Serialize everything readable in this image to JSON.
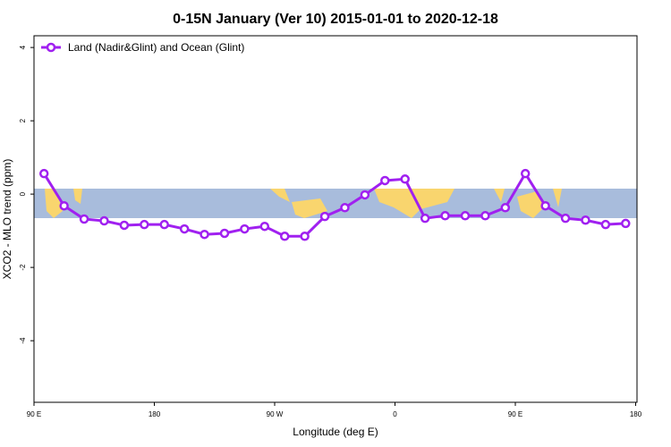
{
  "chart_data": {
    "type": "line",
    "title": "0-15N January (Ver 10)   2015-01-01 to 2020-12-18",
    "x_label": "Longitude (deg E)",
    "y_label": "XCO2 - MLO trend (ppm)",
    "x": [
      97.5,
      112.5,
      127.5,
      142.5,
      157.5,
      172.5,
      187.5,
      202.5,
      217.5,
      232.5,
      247.5,
      262.5,
      277.5,
      292.5,
      307.5,
      322.5,
      337.5,
      352.5,
      367.5,
      382.5,
      397.5,
      412.5,
      427.5,
      442.5,
      457.5,
      472.5,
      487.5,
      502.5,
      517.5,
      532.5
    ],
    "series": [
      {
        "name": "Land (Nadir&Glint) and Ocean (Glint)",
        "color": "#a020f0",
        "values": [
          0.56,
          -0.32,
          -0.68,
          -0.73,
          -0.85,
          -0.83,
          -0.83,
          -0.95,
          -1.1,
          -1.07,
          -0.95,
          -0.88,
          -1.15,
          -1.15,
          -0.61,
          -0.37,
          -0.02,
          0.37,
          0.41,
          -0.66,
          -0.59,
          -0.59,
          -0.59,
          -0.37,
          0.56,
          -0.32,
          -0.66,
          -0.71,
          -0.83,
          -0.8
        ]
      }
    ],
    "xlim": [
      90,
      541
    ],
    "xticks": [
      {
        "value": 90,
        "label": "90 E"
      },
      180,
      {
        "value": 270,
        "label": "90 W"
      },
      {
        "value": 360,
        "label": "0"
      },
      {
        "value": 450,
        "label": "90 E"
      },
      {
        "value": 540,
        "label": "180"
      }
    ],
    "ylim": [
      -5.68,
      4.32
    ],
    "yticks": [
      -4,
      -2,
      0,
      2,
      4
    ],
    "legend_position": "top-left"
  }
}
